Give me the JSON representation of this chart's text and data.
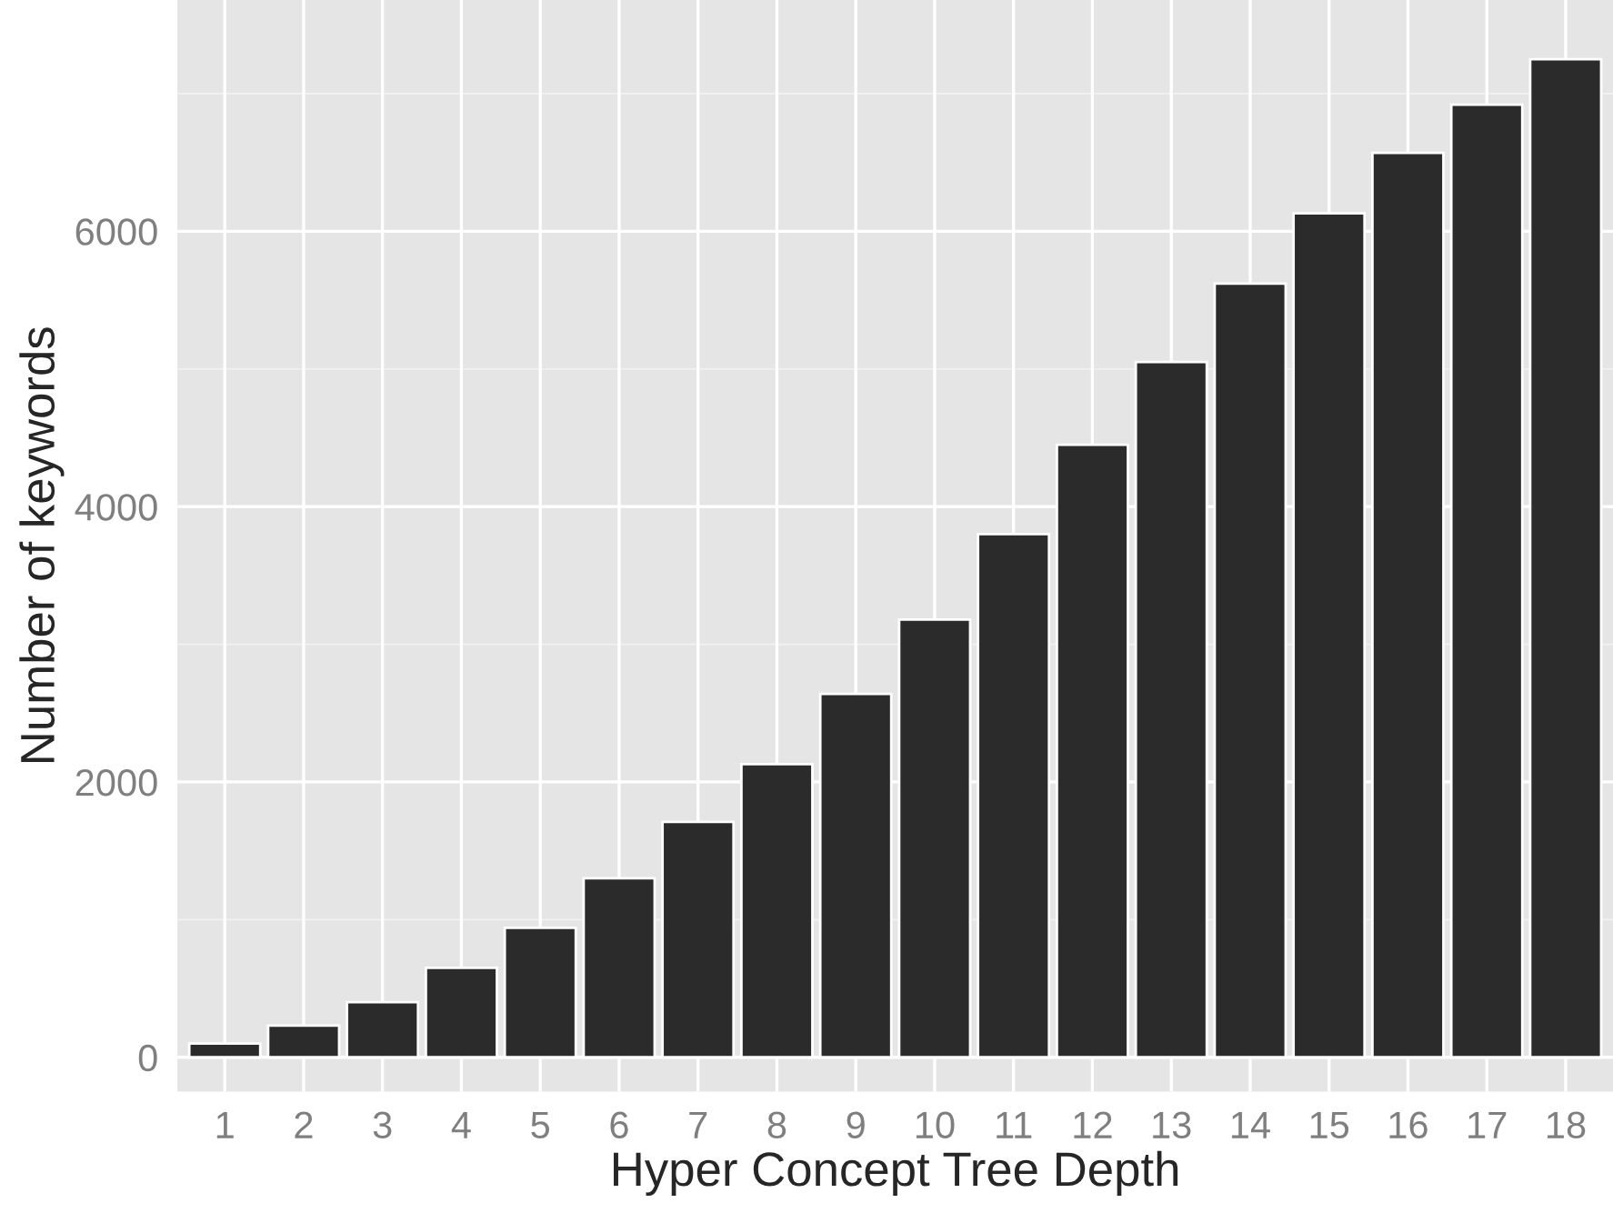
{
  "chart_data": {
    "type": "bar",
    "xlabel": "Hyper Concept Tree Depth",
    "ylabel": "Number of keywords",
    "categories": [
      "1",
      "2",
      "3",
      "4",
      "5",
      "6",
      "7",
      "8",
      "9",
      "10",
      "11",
      "12",
      "13",
      "14",
      "15",
      "16",
      "17",
      "18"
    ],
    "values": [
      100,
      230,
      400,
      650,
      940,
      1300,
      1710,
      2130,
      2640,
      3180,
      3800,
      4450,
      5050,
      5620,
      6130,
      6570,
      6920,
      7250
    ],
    "color": "#2b2b2b",
    "ylim": [
      -250,
      7680
    ],
    "yticks": [
      0,
      2000,
      4000,
      6000
    ],
    "grid": true
  }
}
